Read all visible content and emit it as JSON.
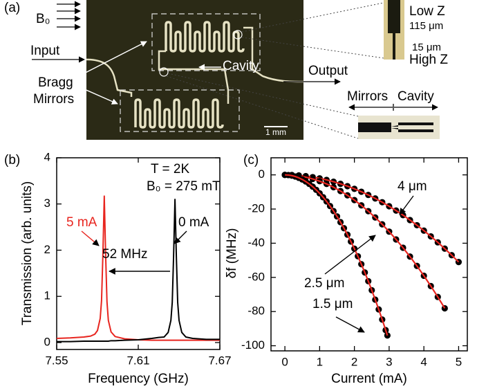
{
  "photo_panel": {
    "label": "(a)",
    "field_label": "B₀",
    "input": "Input",
    "bragg_mirrors": [
      "Bragg",
      "Mirrors"
    ],
    "cavity": "Cavity",
    "output": "Output",
    "scale_bar": "1 mm",
    "inset_top": {
      "low_z": "Low Z",
      "width_low": "115 μm",
      "width_high": "15 μm",
      "high_z": "High Z"
    },
    "inset_bottom": {
      "left": "Mirrors",
      "right": "Cavity"
    }
  },
  "chart_data": [
    {
      "type": "line",
      "label": "(b)",
      "xlabel": "Frequency (GHz)",
      "ylabel": "Transmission (arb. units)",
      "xlim": [
        7.55,
        7.67
      ],
      "xticks": [
        7.55,
        7.61,
        7.67
      ],
      "ylim": [
        -0.15,
        4
      ],
      "yticks": [
        0,
        1,
        2,
        3,
        4
      ],
      "annotations": [
        "T = 2K",
        "B₀ = 275 mT",
        "52 MHz"
      ],
      "x": [
        7.55,
        7.56,
        7.57,
        7.575,
        7.578,
        7.58,
        7.582,
        7.583,
        7.584,
        7.585,
        7.586,
        7.587,
        7.588,
        7.59,
        7.593,
        7.6,
        7.61,
        7.62,
        7.625,
        7.629,
        7.632,
        7.634,
        7.635,
        7.636,
        7.637,
        7.638,
        7.639,
        7.64,
        7.642,
        7.645,
        7.65,
        7.66,
        7.67
      ],
      "series": [
        {
          "name": "5 mA",
          "color": "#e8251f",
          "values": [
            0.09,
            0.1,
            0.12,
            0.14,
            0.18,
            0.26,
            0.52,
            0.91,
            1.92,
            3.17,
            1.9,
            0.88,
            0.48,
            0.23,
            0.13,
            0.08,
            0.06,
            0.05,
            0.05,
            0.05,
            0.05,
            0.05,
            0.05,
            0.05,
            0.05,
            0.05,
            0.05,
            0.05,
            0.05,
            0.05,
            0.05,
            0.05,
            0.05
          ]
        },
        {
          "name": "0 mA",
          "color": "#000000",
          "values": [
            0.02,
            0.02,
            0.03,
            0.03,
            0.03,
            0.03,
            0.03,
            0.03,
            0.03,
            0.03,
            0.03,
            0.03,
            0.03,
            0.04,
            0.04,
            0.05,
            0.06,
            0.09,
            0.11,
            0.12,
            0.22,
            0.48,
            0.87,
            1.88,
            3.1,
            1.88,
            0.87,
            0.48,
            0.22,
            0.12,
            0.09,
            0.07,
            0.07
          ]
        }
      ]
    },
    {
      "type": "line",
      "label": "(c)",
      "xlabel": "Current (mA)",
      "ylabel": "δf (MHz)",
      "xlim": [
        -0.4,
        5.25
      ],
      "xticks": [
        0,
        1,
        2,
        3,
        4,
        5
      ],
      "ylim": [
        -103,
        10
      ],
      "yticks": [
        0,
        -20,
        -40,
        -60,
        -80,
        -100
      ],
      "markers": true,
      "marker_color": "#000000",
      "line_color": "#e8251f",
      "series": [
        {
          "name": "4 μm",
          "x": [
            0,
            0.2,
            0.4,
            0.6,
            0.8,
            1.0,
            1.2,
            1.4,
            1.6,
            1.8,
            2.0,
            2.2,
            2.4,
            2.6,
            2.8,
            3.0,
            3.2,
            3.4,
            3.6,
            3.8,
            4.0,
            4.2,
            4.4,
            4.6,
            4.8,
            5.0
          ],
          "values": [
            0,
            -0.08,
            -0.33,
            -0.73,
            -1.31,
            -2.04,
            -2.94,
            -4.0,
            -5.22,
            -6.61,
            -8.16,
            -9.87,
            -11.75,
            -13.79,
            -15.99,
            -18.36,
            -20.89,
            -23.58,
            -26.44,
            -29.46,
            -32.64,
            -35.99,
            -39.49,
            -43.17,
            -47.0,
            -51.0
          ]
        },
        {
          "name": "2.5 μm",
          "x": [
            0,
            0.2,
            0.4,
            0.6,
            0.8,
            1.0,
            1.2,
            1.4,
            1.6,
            1.8,
            2.0,
            2.2,
            2.4,
            2.6,
            2.8,
            3.0,
            3.2,
            3.4,
            3.6,
            3.8,
            4.0,
            4.2,
            4.4,
            4.6
          ],
          "values": [
            0,
            -0.15,
            -0.59,
            -1.33,
            -2.36,
            -3.69,
            -5.31,
            -7.23,
            -9.45,
            -11.96,
            -14.76,
            -17.86,
            -21.25,
            -24.94,
            -28.93,
            -33.21,
            -37.79,
            -42.66,
            -47.82,
            -53.28,
            -59.04,
            -65.09,
            -71.44,
            -78.08
          ]
        },
        {
          "name": "1.5 μm",
          "x": [
            0,
            0.1,
            0.2,
            0.3,
            0.4,
            0.5,
            0.6,
            0.7,
            0.8,
            0.9,
            1.0,
            1.1,
            1.2,
            1.3,
            1.4,
            1.5,
            1.6,
            1.7,
            1.8,
            1.9,
            2.0,
            2.1,
            2.2,
            2.3,
            2.4,
            2.5,
            2.6,
            2.7,
            2.8,
            2.9,
            2.95
          ],
          "values": [
            0,
            -0.11,
            -0.43,
            -0.97,
            -1.73,
            -2.7,
            -3.89,
            -5.29,
            -6.91,
            -8.75,
            -10.8,
            -13.07,
            -15.55,
            -18.25,
            -21.17,
            -24.3,
            -27.65,
            -31.21,
            -34.99,
            -38.99,
            -43.2,
            -47.63,
            -52.27,
            -57.13,
            -62.21,
            -67.5,
            -73.01,
            -78.73,
            -84.67,
            -90.83,
            -93.99
          ]
        }
      ]
    }
  ]
}
